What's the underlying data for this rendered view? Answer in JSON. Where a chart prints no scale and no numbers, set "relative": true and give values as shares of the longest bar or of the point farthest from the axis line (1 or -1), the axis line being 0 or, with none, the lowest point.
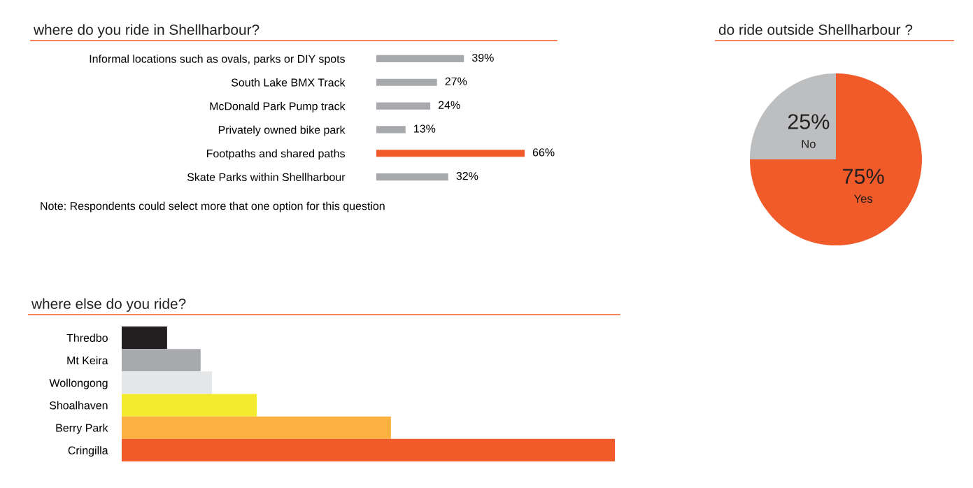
{
  "chart_data": [
    {
      "type": "bar",
      "orientation": "horizontal",
      "title": "where do you ride in Shellharbour?",
      "categories": [
        "Informal locations such as ovals, parks or DIY spots",
        "South Lake BMX Track",
        "McDonald Park Pump track",
        "Privately owned bike park",
        "Footpaths and shared paths",
        "Skate Parks within Shellharbour"
      ],
      "values": [
        39,
        27,
        24,
        13,
        66,
        32
      ],
      "colors": [
        "#a7a9ac",
        "#a7a9ac",
        "#a7a9ac",
        "#a7a9ac",
        "#f15a29",
        "#a7a9ac"
      ],
      "value_labels": [
        "39%",
        "27%",
        "24%",
        "13%",
        "66%",
        "32%"
      ],
      "annotations": [
        "Note: Respondents could select more that one option for this question"
      ],
      "tick_labels": "y",
      "grid": false,
      "legend": false
    },
    {
      "type": "pie",
      "title": "do ride outside Shellharbour ?",
      "categories": [
        "No",
        "Yes"
      ],
      "values": [
        25,
        75
      ],
      "colors": [
        "#bcbec0",
        "#f15a29"
      ],
      "value_labels": [
        "25%",
        "75%"
      ],
      "legend": false
    },
    {
      "type": "bar",
      "orientation": "horizontal",
      "relative": true,
      "title": "where else do you ride?",
      "categories": [
        "Thredbo",
        "Mt Keira",
        "Wollongong",
        "Shoalhaven",
        "Berry Park",
        "Cringilla"
      ],
      "values": [
        0.092,
        0.16,
        0.183,
        0.274,
        0.546,
        1
      ],
      "colors": [
        "#231f20",
        "#a7a9ac",
        "#e6e7e8",
        "#f4ea2e",
        "#fbb040",
        "#f15a29"
      ],
      "tick_labels": "y",
      "grid": false,
      "legend": false
    }
  ]
}
